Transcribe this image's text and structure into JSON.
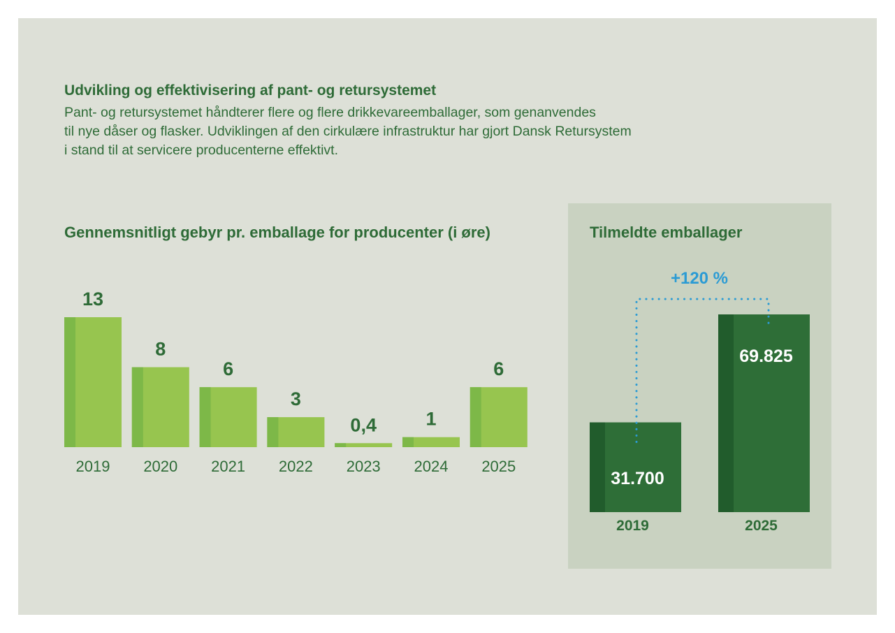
{
  "intro": {
    "title": "Udvikling og effektivisering af pant- og retursystemet",
    "lines": [
      "Pant- og retursystemet håndterer flere og flere drikkevareemballager, som genanvendes",
      "til nye dåser og flasker. Udviklingen af den cirkulære infrastruktur har gjort Dansk Retursystem",
      "i stand til at servicere producenterne effektivt."
    ]
  },
  "colors": {
    "page_bg": "#dde0d7",
    "panel_bg": "#c9d2c1",
    "text_green": "#2e6b37",
    "light_bar": "#97c54f",
    "light_bar_edge": "#7db848",
    "dark_bar": "#2e6e37",
    "dark_bar_edge": "#215c2c",
    "accent_blue": "#2b9bd4"
  },
  "chart_data": [
    {
      "type": "bar",
      "title": "Gennemsnitligt gebyr pr. emballage for producenter (i øre)",
      "categories": [
        "2019",
        "2020",
        "2021",
        "2022",
        "2023",
        "2024",
        "2025"
      ],
      "values": [
        13,
        8,
        6,
        3,
        0.4,
        1,
        6
      ],
      "value_labels": [
        "13",
        "8",
        "6",
        "3",
        "0,4",
        "1",
        "6"
      ],
      "xlabel": "",
      "ylabel": "",
      "ylim": [
        0,
        13
      ],
      "grid": false
    },
    {
      "type": "bar",
      "title": "Tilmeldte emballager",
      "categories": [
        "2019",
        "2025"
      ],
      "values": [
        31700,
        69825
      ],
      "value_labels": [
        "31.700",
        "69.825"
      ],
      "annotation": "+120 %",
      "ylim": [
        0,
        69825
      ],
      "grid": false
    }
  ]
}
